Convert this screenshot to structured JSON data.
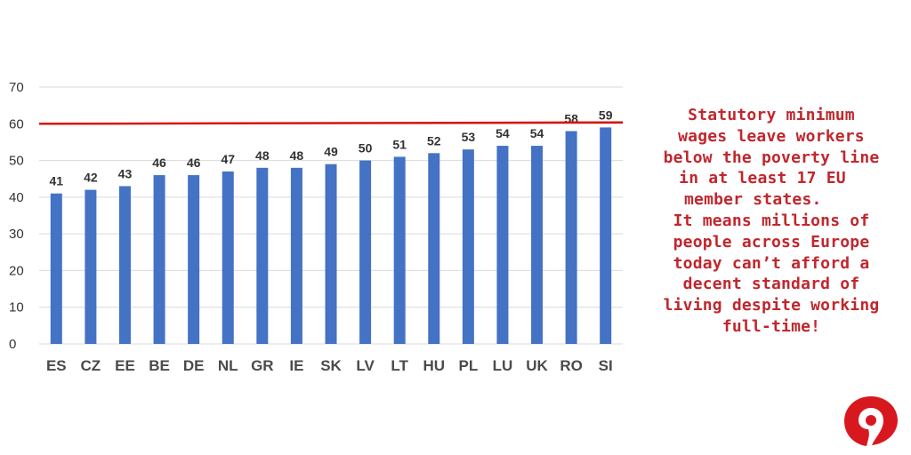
{
  "chart_data": {
    "type": "bar",
    "categories": [
      "ES",
      "CZ",
      "EE",
      "BE",
      "DE",
      "NL",
      "GR",
      "IE",
      "SK",
      "LV",
      "LT",
      "HU",
      "PL",
      "LU",
      "UK",
      "RO",
      "SI"
    ],
    "values": [
      41,
      42,
      43,
      46,
      46,
      47,
      48,
      48,
      49,
      50,
      51,
      52,
      53,
      54,
      54,
      58,
      59
    ],
    "ylim": [
      0,
      70
    ],
    "yticks": [
      0,
      10,
      20,
      30,
      40,
      50,
      60,
      70
    ],
    "grid": true,
    "reference_line": {
      "value": 60,
      "color": "#d9140e"
    },
    "bar_color": "#4472c4",
    "title": "",
    "xlabel": "",
    "ylabel": ""
  },
  "caption": {
    "lines": [
      "Statutory minimum",
      "wages leave workers",
      "below the poverty line",
      "in at least 17 EU",
      "member states.",
      "It means millions of",
      "people across Europe",
      "today can’t afford a",
      "decent standard of",
      "living despite working",
      "full-time!"
    ],
    "color": "#c0272d"
  },
  "logo": {
    "icon": "brand-logo-icon",
    "color": "#d7191f"
  }
}
